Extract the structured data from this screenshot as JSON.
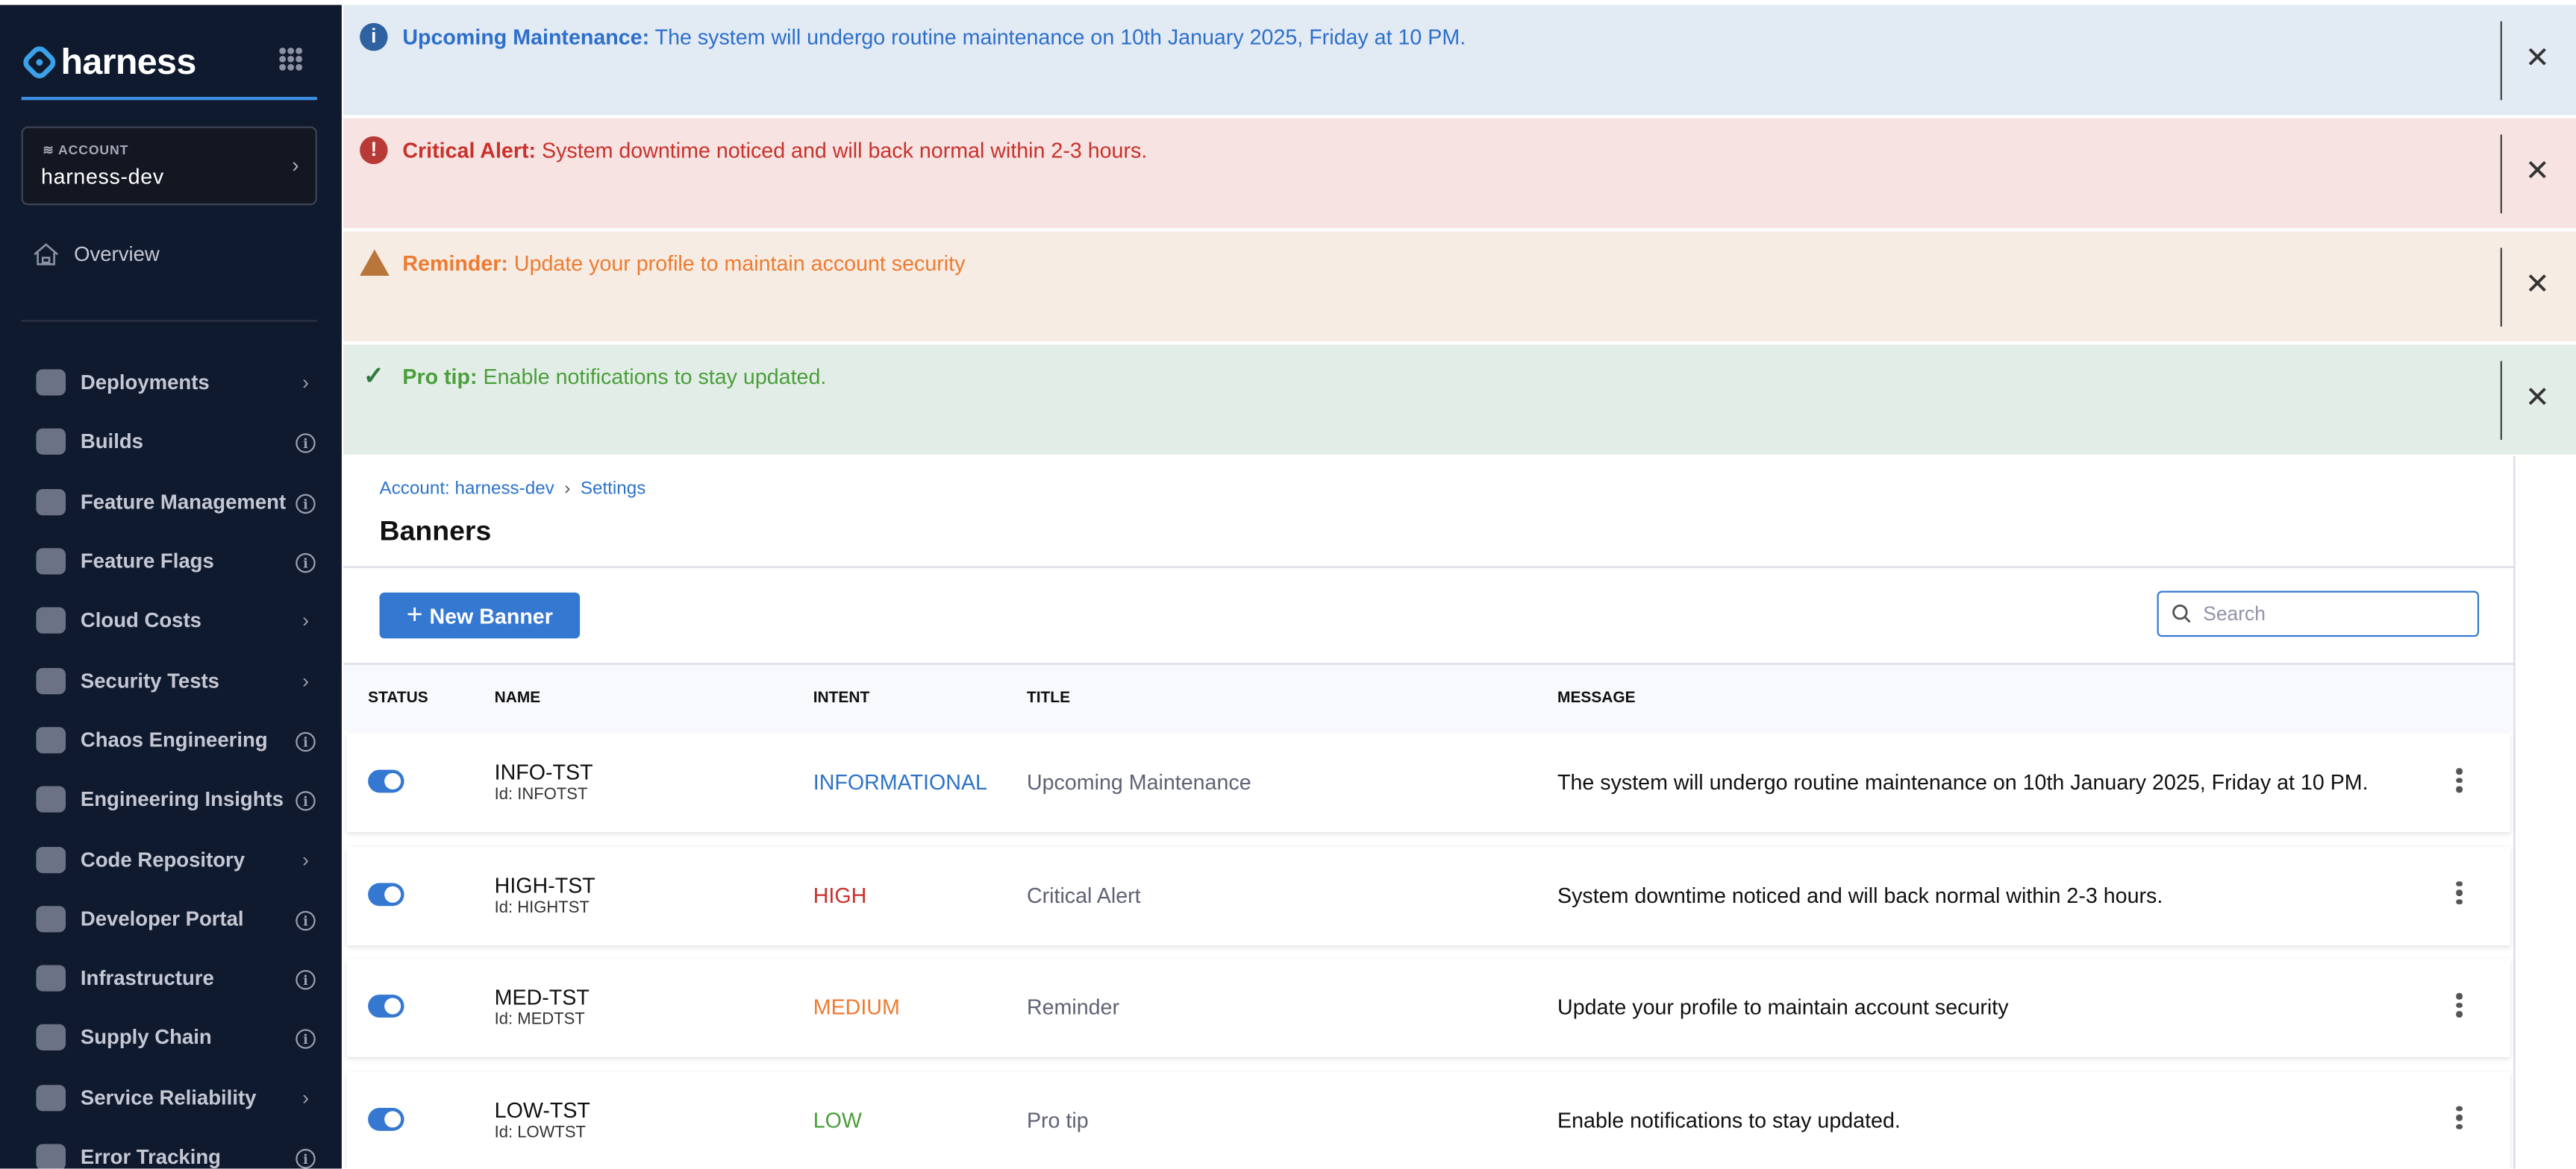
{
  "sidebar": {
    "logo": "harness",
    "account_label": "ACCOUNT",
    "account_name": "harness-dev",
    "overview": "Overview",
    "items": [
      {
        "label": "Deployments",
        "trail": "chevron"
      },
      {
        "label": "Builds",
        "trail": "info"
      },
      {
        "label": "Feature Management",
        "trail": "info"
      },
      {
        "label": "Feature Flags",
        "trail": "info"
      },
      {
        "label": "Cloud Costs",
        "trail": "chevron"
      },
      {
        "label": "Security Tests",
        "trail": "chevron"
      },
      {
        "label": "Chaos Engineering",
        "trail": "info"
      },
      {
        "label": "Engineering Insights",
        "trail": "info"
      },
      {
        "label": "Code Repository",
        "trail": "chevron"
      },
      {
        "label": "Developer Portal",
        "trail": "info"
      },
      {
        "label": "Infrastructure",
        "trail": "info"
      },
      {
        "label": "Supply Chain",
        "trail": "info"
      },
      {
        "label": "Service Reliability",
        "trail": "chevron"
      },
      {
        "label": "Error Tracking",
        "trail": "info"
      }
    ]
  },
  "banners": [
    {
      "title": "Upcoming Maintenance:",
      "message": "The system will undergo routine maintenance on 10th January 2025, Friday at 10 PM.",
      "icon": "info-icon",
      "bg": "#e2eaf3",
      "color": "#2d6fcb",
      "icon_color": "#2e62a0"
    },
    {
      "title": "Critical Alert:",
      "message": " System downtime noticed and will back normal within 2-3 hours.",
      "icon": "error-icon",
      "bg": "#f6e3e2",
      "color": "#c8322b",
      "icon_color": "#b73a36"
    },
    {
      "title": "Reminder:",
      "message": "Update your profile to maintain account security",
      "icon": "warning-icon",
      "bg": "#f6ece3",
      "color": "#ed7b31",
      "icon_color": "#b9763b"
    },
    {
      "title": "Pro tip:",
      "message": "Enable notifications to stay updated.",
      "icon": "check-icon",
      "bg": "#e3ede8",
      "color": "#4a9f3a",
      "icon_color": "#2f7a3f"
    }
  ],
  "breadcrumb": {
    "account": "Account: harness-dev",
    "sep": "›",
    "settings": "Settings"
  },
  "page_title": "Banners",
  "new_banner_label": "New Banner",
  "search": {
    "placeholder": "Search"
  },
  "table": {
    "headers": {
      "status": "STATUS",
      "name": "NAME",
      "intent": "INTENT",
      "title": "TITLE",
      "message": "MESSAGE"
    },
    "rows": [
      {
        "enabled": true,
        "name": "INFO-TST",
        "id": "Id: INFOTST",
        "intent": "INFORMATIONAL",
        "intent_color": "#2d73c8",
        "title": "Upcoming Maintenance",
        "message": "The system will undergo routine maintenance on 10th January 2025, Friday at 10 PM."
      },
      {
        "enabled": true,
        "name": "HIGH-TST",
        "id": "Id: HIGHTST",
        "intent": "HIGH",
        "intent_color": "#c8322b",
        "title": "Critical Alert",
        "message": "System downtime noticed and will back normal within 2-3 hours."
      },
      {
        "enabled": true,
        "name": "MED-TST",
        "id": "Id: MEDTST",
        "intent": "MEDIUM",
        "intent_color": "#ed7b31",
        "title": "Reminder",
        "message": "Update your profile to maintain account security"
      },
      {
        "enabled": true,
        "name": "LOW-TST",
        "id": "Id: LOWTST",
        "intent": "LOW",
        "intent_color": "#4a9f3a",
        "title": "Pro tip",
        "message": "Enable notifications to stay updated."
      }
    ]
  }
}
